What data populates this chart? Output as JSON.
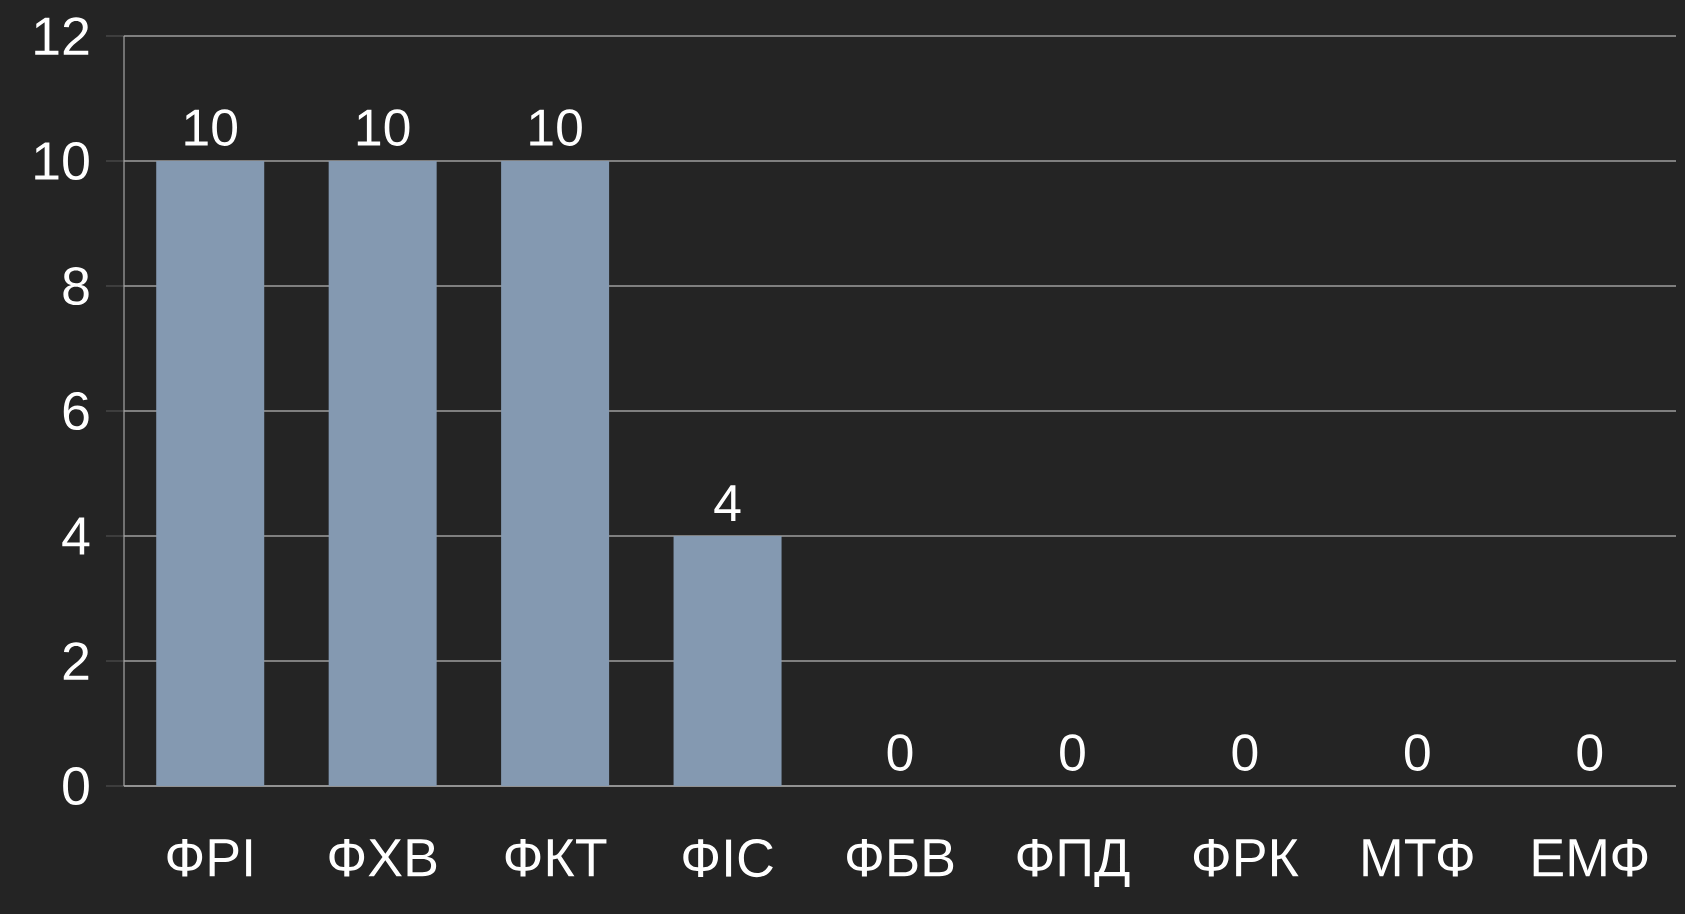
{
  "chart_data": {
    "type": "bar",
    "categories": [
      "ФРІ",
      "ФХВ",
      "ФКТ",
      "ФІС",
      "ФБВ",
      "ФПД",
      "ФРК",
      "МТФ",
      "ЕМФ"
    ],
    "values": [
      10,
      10,
      10,
      4,
      0,
      0,
      0,
      0,
      0
    ],
    "color": "#8499b1",
    "ylim": [
      0,
      12
    ],
    "yticks": [
      0,
      2,
      4,
      6,
      8,
      10,
      12
    ],
    "grid": "y",
    "data_labels": true
  }
}
